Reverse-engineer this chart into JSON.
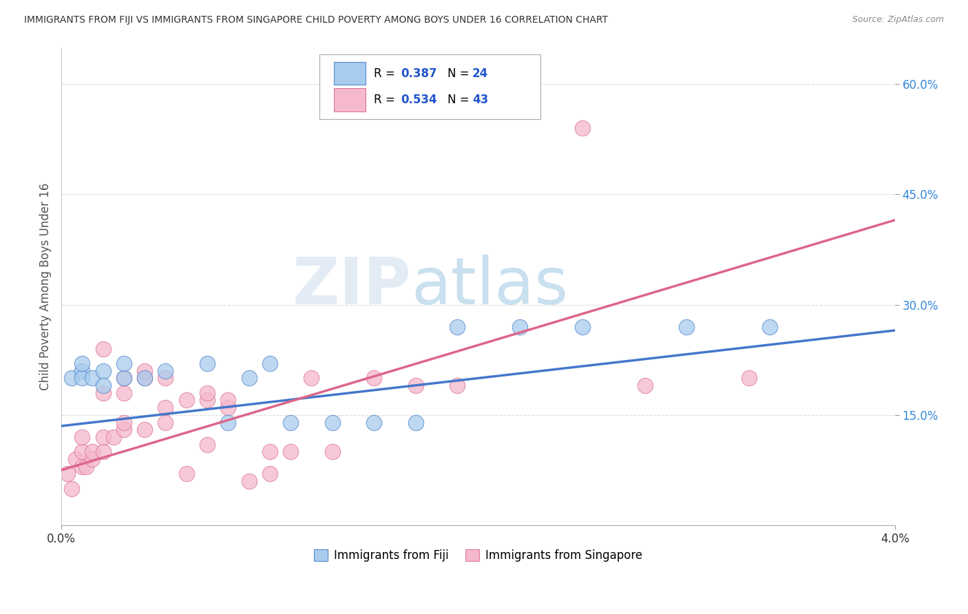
{
  "title": "IMMIGRANTS FROM FIJI VS IMMIGRANTS FROM SINGAPORE CHILD POVERTY AMONG BOYS UNDER 16 CORRELATION CHART",
  "source": "Source: ZipAtlas.com",
  "ylabel": "Child Poverty Among Boys Under 16",
  "xlabel_fiji": "Immigrants from Fiji",
  "xlabel_singapore": "Immigrants from Singapore",
  "watermark_zip": "ZIP",
  "watermark_atlas": "atlas",
  "xlim": [
    0.0,
    0.04
  ],
  "ylim": [
    0.0,
    0.65
  ],
  "ytick_values": [
    0.15,
    0.3,
    0.45,
    0.6
  ],
  "ytick_labels": [
    "15.0%",
    "30.0%",
    "45.0%",
    "60.0%"
  ],
  "xtick_values": [
    0.0,
    0.04
  ],
  "xtick_labels": [
    "0.0%",
    "4.0%"
  ],
  "fiji_R": "0.387",
  "fiji_N": "24",
  "singapore_R": "0.534",
  "singapore_N": "43",
  "fiji_color": "#a8ccee",
  "fiji_edge_color": "#5588cc",
  "fiji_line_color": "#4477cc",
  "singapore_color": "#f5b8cc",
  "singapore_edge_color": "#dd7799",
  "singapore_line_color": "#dd6688",
  "legend_value_color": "#2255cc",
  "grid_color": "#cccccc",
  "title_color": "#333333",
  "fiji_scatter_x": [
    0.0005,
    0.001,
    0.001,
    0.001,
    0.0015,
    0.002,
    0.002,
    0.003,
    0.003,
    0.004,
    0.005,
    0.007,
    0.008,
    0.009,
    0.01,
    0.011,
    0.013,
    0.015,
    0.017,
    0.019,
    0.022,
    0.025,
    0.03,
    0.034
  ],
  "fiji_scatter_y": [
    0.2,
    0.21,
    0.2,
    0.22,
    0.2,
    0.21,
    0.19,
    0.2,
    0.22,
    0.2,
    0.21,
    0.22,
    0.14,
    0.2,
    0.22,
    0.14,
    0.14,
    0.14,
    0.14,
    0.27,
    0.27,
    0.27,
    0.27,
    0.27
  ],
  "singapore_scatter_x": [
    0.0003,
    0.0005,
    0.0007,
    0.001,
    0.001,
    0.001,
    0.0012,
    0.0015,
    0.0015,
    0.002,
    0.002,
    0.002,
    0.002,
    0.0025,
    0.003,
    0.003,
    0.003,
    0.003,
    0.004,
    0.004,
    0.004,
    0.005,
    0.005,
    0.005,
    0.006,
    0.006,
    0.007,
    0.007,
    0.007,
    0.008,
    0.008,
    0.009,
    0.01,
    0.01,
    0.011,
    0.012,
    0.013,
    0.015,
    0.017,
    0.019,
    0.025,
    0.028,
    0.033
  ],
  "singapore_scatter_y": [
    0.07,
    0.05,
    0.09,
    0.08,
    0.1,
    0.12,
    0.08,
    0.09,
    0.1,
    0.1,
    0.12,
    0.18,
    0.24,
    0.12,
    0.13,
    0.14,
    0.18,
    0.2,
    0.13,
    0.2,
    0.21,
    0.14,
    0.16,
    0.2,
    0.07,
    0.17,
    0.11,
    0.17,
    0.18,
    0.16,
    0.17,
    0.06,
    0.1,
    0.07,
    0.1,
    0.2,
    0.1,
    0.2,
    0.19,
    0.19,
    0.54,
    0.19,
    0.2
  ],
  "fiji_trend_x0": 0.0,
  "fiji_trend_y0": 0.135,
  "fiji_trend_x1": 0.04,
  "fiji_trend_y1": 0.265,
  "sing_trend_x0": 0.0,
  "sing_trend_y0": 0.075,
  "sing_trend_x1": 0.04,
  "sing_trend_y1": 0.415
}
